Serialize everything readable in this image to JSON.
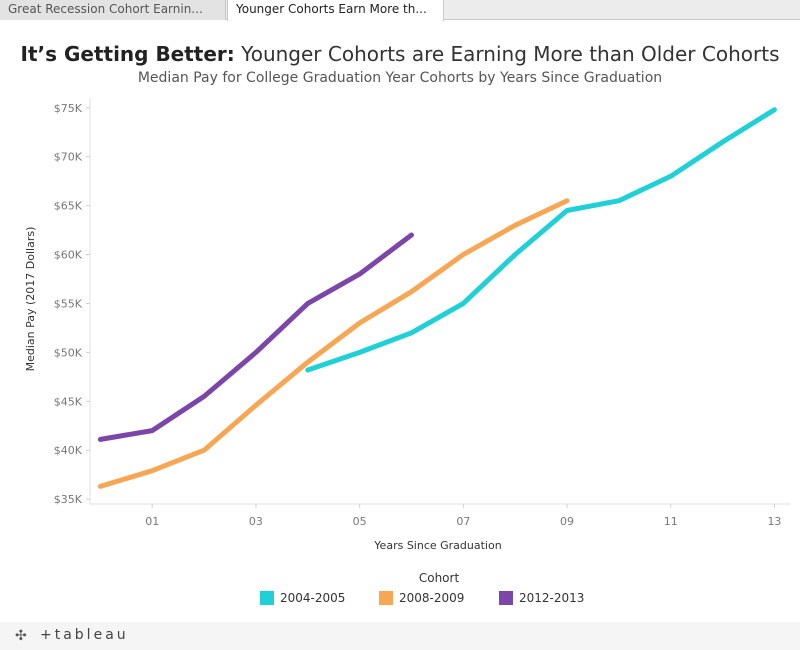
{
  "tabs": [
    {
      "label": "Great Recession Cohort Earnin..."
    },
    {
      "label": "Younger Cohorts Earn More th..."
    }
  ],
  "title_bold": "It’s Getting Better:",
  "title_rest": " Younger Cohorts are Earning More than Older Cohorts",
  "subtitle": "Median Pay for College Graduation Year Cohorts by Years Since Graduation",
  "footer": {
    "logo_text": "+tableau",
    "logo_icon": "tableau-logo-icon"
  },
  "chart_data": {
    "type": "line",
    "xlabel": "Years Since Graduation",
    "ylabel": "Median Pay (2017 Dollars)",
    "xlim": [
      -0.2,
      13.3
    ],
    "ylim": [
      34500,
      76000
    ],
    "x_ticks": [
      1,
      3,
      5,
      7,
      9,
      11,
      13
    ],
    "x_tick_labels": [
      "01",
      "03",
      "05",
      "07",
      "09",
      "11",
      "13"
    ],
    "y_ticks": [
      35000,
      40000,
      45000,
      50000,
      55000,
      60000,
      65000,
      70000,
      75000
    ],
    "y_tick_labels": [
      "$35K",
      "$40K",
      "$45K",
      "$50K",
      "$55K",
      "$60K",
      "$65K",
      "$70K",
      "$75K"
    ],
    "legend_title": "Cohort",
    "legend_position": "bottom",
    "series": [
      {
        "name": "2004-2005",
        "color": "#1fd0d6",
        "x": [
          4,
          5,
          6,
          7,
          8,
          9,
          10,
          11,
          12,
          13
        ],
        "y": [
          48200,
          50000,
          52000,
          55000,
          60000,
          64500,
          65500,
          68000,
          71500,
          74800
        ]
      },
      {
        "name": "2008-2009",
        "color": "#f7a654",
        "x": [
          0,
          1,
          2,
          3,
          4,
          5,
          6,
          7,
          8,
          9
        ],
        "y": [
          36300,
          37900,
          40000,
          44600,
          49000,
          53000,
          56200,
          60000,
          63000,
          65500
        ]
      },
      {
        "name": "2012-2013",
        "color": "#7b46a8",
        "x": [
          0,
          1,
          2,
          3,
          4,
          5,
          6
        ],
        "y": [
          41100,
          42000,
          45500,
          50000,
          55000,
          58000,
          62000
        ]
      }
    ]
  }
}
